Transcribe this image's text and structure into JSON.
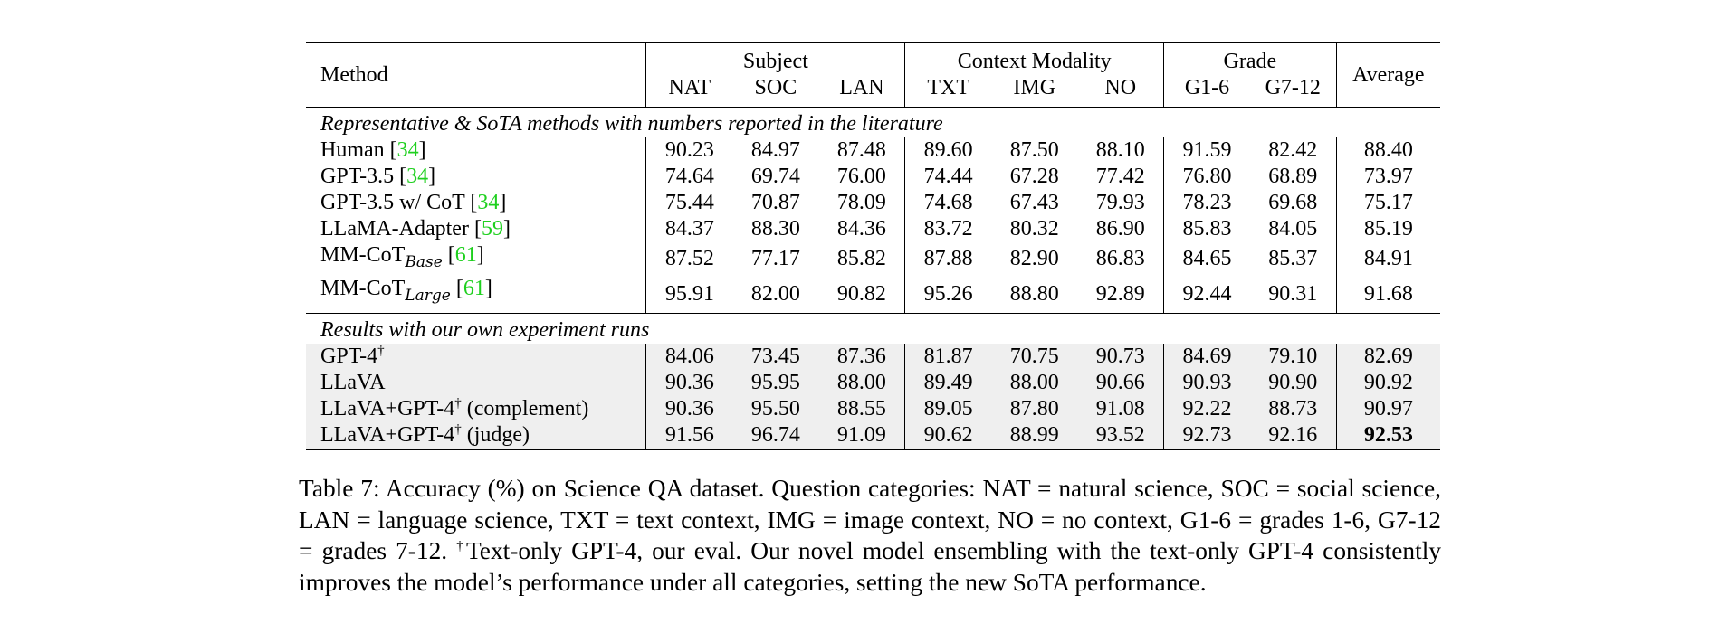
{
  "table": {
    "header": {
      "method": "Method",
      "groups": {
        "subject": "Subject",
        "context": "Context Modality",
        "grade": "Grade"
      },
      "average": "Average",
      "columns": [
        "NAT",
        "SOC",
        "LAN",
        "TXT",
        "IMG",
        "NO",
        "G1-6",
        "G7-12"
      ]
    },
    "sections": [
      {
        "title": "Representative & SoTA methods with numbers reported in the literature",
        "rows": [
          {
            "name": "Human",
            "sub": "",
            "sup": "",
            "note": "",
            "cite": "34",
            "values": [
              "90.23",
              "84.97",
              "87.48",
              "89.60",
              "87.50",
              "88.10",
              "91.59",
              "82.42"
            ],
            "average": "88.40"
          },
          {
            "name": "GPT-3.5",
            "sub": "",
            "sup": "",
            "note": "",
            "cite": "34",
            "values": [
              "74.64",
              "69.74",
              "76.00",
              "74.44",
              "67.28",
              "77.42",
              "76.80",
              "68.89"
            ],
            "average": "73.97"
          },
          {
            "name": "GPT-3.5 w/ CoT",
            "sub": "",
            "sup": "",
            "note": "",
            "cite": "34",
            "values": [
              "75.44",
              "70.87",
              "78.09",
              "74.68",
              "67.43",
              "79.93",
              "78.23",
              "69.68"
            ],
            "average": "75.17"
          },
          {
            "name": "LLaMA-Adapter",
            "sub": "",
            "sup": "",
            "note": "",
            "cite": "59",
            "values": [
              "84.37",
              "88.30",
              "84.36",
              "83.72",
              "80.32",
              "86.90",
              "85.83",
              "84.05"
            ],
            "average": "85.19"
          },
          {
            "name": "MM-CoT",
            "sub": "Base",
            "sup": "",
            "note": "",
            "cite": "61",
            "values": [
              "87.52",
              "77.17",
              "85.82",
              "87.88",
              "82.90",
              "86.83",
              "84.65",
              "85.37"
            ],
            "average": "84.91"
          },
          {
            "name": "MM-CoT",
            "sub": "Large",
            "sup": "",
            "note": "",
            "cite": "61",
            "values": [
              "95.91",
              "82.00",
              "90.82",
              "95.26",
              "88.80",
              "92.89",
              "92.44",
              "90.31"
            ],
            "average": "91.68"
          }
        ]
      },
      {
        "title": "Results with our own experiment runs",
        "rows": [
          {
            "name": "GPT-4",
            "sub": "",
            "sup": "†",
            "note": "",
            "cite": "",
            "values": [
              "84.06",
              "73.45",
              "87.36",
              "81.87",
              "70.75",
              "90.73",
              "84.69",
              "79.10"
            ],
            "average": "82.69"
          },
          {
            "name": "LLaVA",
            "sub": "",
            "sup": "",
            "note": "",
            "cite": "",
            "values": [
              "90.36",
              "95.95",
              "88.00",
              "89.49",
              "88.00",
              "90.66",
              "90.93",
              "90.90"
            ],
            "average": "90.92"
          },
          {
            "name": "LLaVA+GPT-4",
            "sub": "",
            "sup": "†",
            "note": "(complement)",
            "cite": "",
            "values": [
              "90.36",
              "95.50",
              "88.55",
              "89.05",
              "87.80",
              "91.08",
              "92.22",
              "88.73"
            ],
            "average": "90.97"
          },
          {
            "name": "LLaVA+GPT-4",
            "sub": "",
            "sup": "†",
            "note": "(judge)",
            "cite": "",
            "values": [
              "91.56",
              "96.74",
              "91.09",
              "90.62",
              "88.99",
              "93.52",
              "92.73",
              "92.16"
            ],
            "average": "92.53",
            "average_bold": true
          }
        ]
      }
    ]
  },
  "caption": {
    "text_before_dagger": "Table 7: Accuracy (%) on Science QA dataset. Question categories: NAT = natural science, SOC = social science, LAN = language science, TXT = text context, IMG = image context, NO = no context, G1-6 = grades 1-6, G7-12 = grades 7-12. ",
    "dagger": "†",
    "text_after_dagger": "Text-only GPT-4, our eval. Our novel model ensembling with the text-only GPT-4 consistently improves the model’s performance under all categories, setting the new SoTA performance."
  },
  "colors": {
    "citation": "#1fd01f",
    "shaded_rows": "#efefef"
  }
}
